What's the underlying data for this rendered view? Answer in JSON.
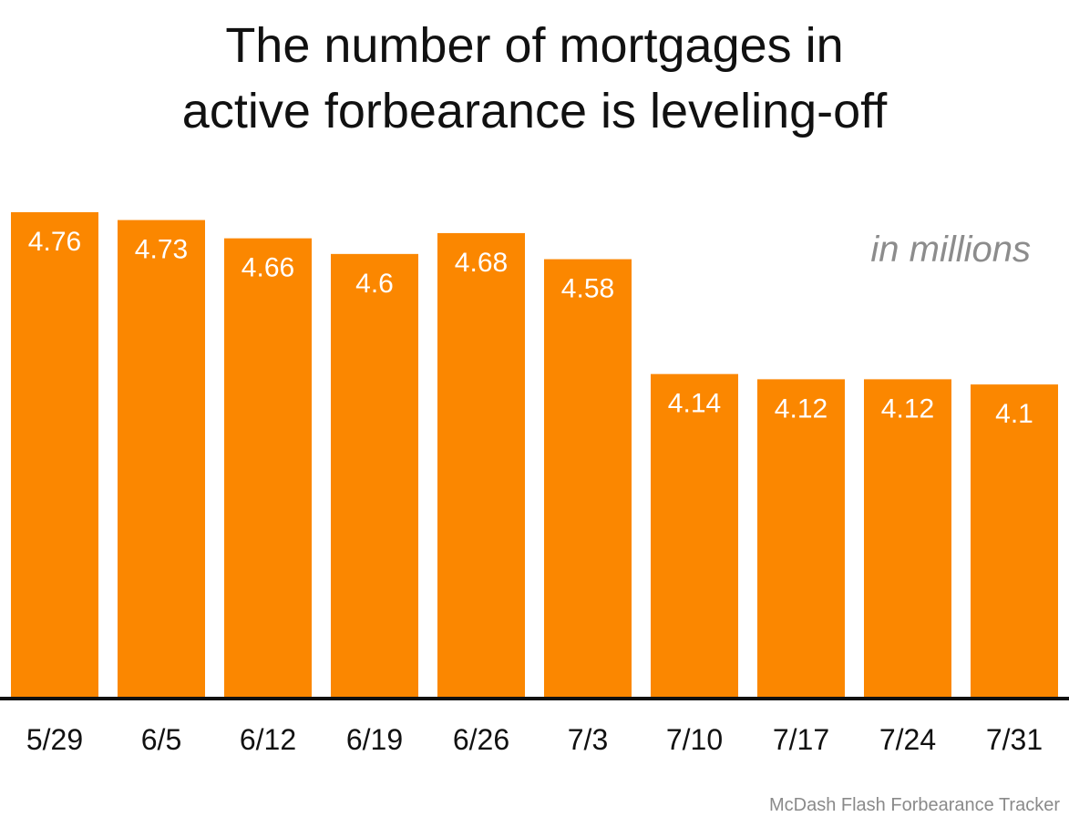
{
  "title": {
    "line1": "The number of mortgages in",
    "line2": "active forbearance is leveling-off"
  },
  "unit_note": "in millions",
  "source": "McDash Flash Forbearance Tracker",
  "colors": {
    "bar": "#FB8700",
    "bar_label": "#ffffff",
    "axis": "#111111",
    "tick": "#111111"
  },
  "chart_data": {
    "type": "bar",
    "title": "The number of mortgages in active forbearance is leveling-off",
    "categories": [
      "5/29",
      "6/5",
      "6/12",
      "6/19",
      "6/26",
      "7/3",
      "7/10",
      "7/17",
      "7/24",
      "7/31"
    ],
    "values": [
      4.76,
      4.73,
      4.66,
      4.6,
      4.68,
      4.58,
      4.14,
      4.12,
      4.12,
      4.1
    ],
    "value_labels": [
      "4.76",
      "4.73",
      "4.66",
      "4.6",
      "4.68",
      "4.58",
      "4.14",
      "4.12",
      "4.12",
      "4.1"
    ],
    "ylabel": "in millions",
    "xlabel": "",
    "ylim": [
      2.9,
      4.76
    ],
    "grid": false,
    "legend": "none"
  }
}
